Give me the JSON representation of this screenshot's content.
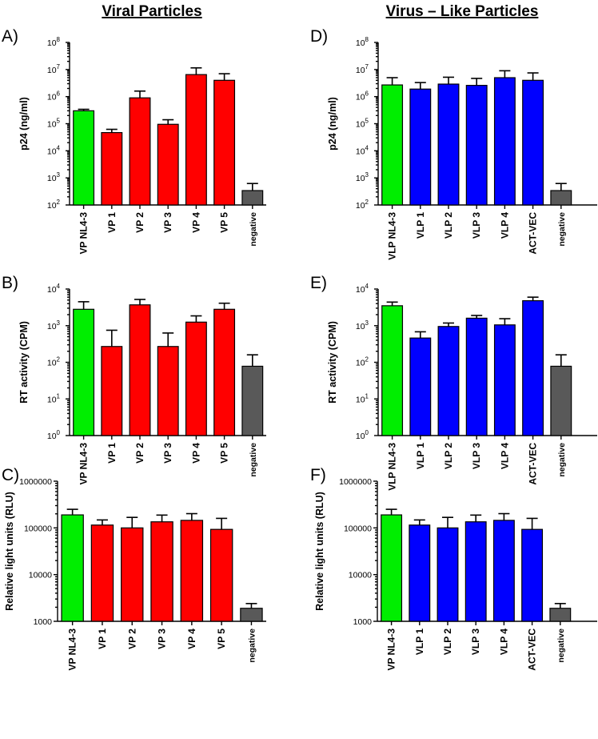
{
  "colors": {
    "green": "#00ee00",
    "red": "#ff0000",
    "blue": "#0000ff",
    "gray": "#595959"
  },
  "titles": {
    "left": "Viral Particles",
    "right": "Virus – Like Particles"
  },
  "chart_data": [
    {
      "panel": "A)",
      "type": "bar",
      "scale": "log",
      "ylabel": "p24 (ng/ml)",
      "ylim": [
        100,
        100000000
      ],
      "ytick_labels": [
        {
          "base": "10",
          "exp": "2"
        },
        {
          "base": "10",
          "exp": "3"
        },
        {
          "base": "10",
          "exp": "4"
        },
        {
          "base": "10",
          "exp": "5"
        },
        {
          "base": "10",
          "exp": "6"
        },
        {
          "base": "10",
          "exp": "7"
        },
        {
          "base": "10",
          "exp": "8"
        }
      ],
      "categories": [
        "VP NL4-3",
        "VP 1",
        "VP 2",
        "VP 3",
        "VP 4",
        "VP 5",
        "negative"
      ],
      "values": [
        300000,
        47000,
        900000,
        95000,
        6500000,
        4000000,
        340
      ],
      "errors": [
        340000,
        62000,
        1600000,
        140000,
        11500000,
        7000000,
        620
      ],
      "bar_colors": [
        "green",
        "red",
        "red",
        "red",
        "red",
        "red",
        "gray"
      ]
    },
    {
      "panel": "B)",
      "type": "bar",
      "scale": "log",
      "ylabel": "RT activity (CPM)",
      "ylim": [
        1,
        10000
      ],
      "ytick_labels": [
        {
          "base": "10",
          "exp": "0"
        },
        {
          "base": "10",
          "exp": "1"
        },
        {
          "base": "10",
          "exp": "2"
        },
        {
          "base": "10",
          "exp": "3"
        },
        {
          "base": "10",
          "exp": "4"
        }
      ],
      "categories": [
        "VP NL4-3",
        "VP 1",
        "VP 2",
        "VP 3",
        "VP 4",
        "VP 5",
        "negative"
      ],
      "values": [
        2800,
        270,
        3700,
        270,
        1250,
        2800,
        78
      ],
      "errors": [
        4500,
        750,
        5200,
        630,
        1850,
        4100,
        160
      ],
      "bar_colors": [
        "green",
        "red",
        "red",
        "red",
        "red",
        "red",
        "gray"
      ]
    },
    {
      "panel": "C)",
      "type": "bar",
      "scale": "log",
      "ylabel": "Relative light units (RLU)",
      "ylim": [
        1000,
        1000000
      ],
      "ytick_labels": [
        {
          "base": "1000"
        },
        {
          "base": "10000"
        },
        {
          "base": "100000"
        },
        {
          "base": "1000000"
        }
      ],
      "categories": [
        "VP NL4-3",
        "VP 1",
        "VP 2",
        "VP 3",
        "VP 4",
        "VP 5",
        "negative"
      ],
      "values": [
        190000,
        115000,
        100000,
        135000,
        145000,
        93000,
        1900
      ],
      "errors": [
        250000,
        148000,
        168000,
        188000,
        202000,
        160000,
        2400
      ],
      "bar_colors": [
        "green",
        "red",
        "red",
        "red",
        "red",
        "red",
        "gray"
      ]
    },
    {
      "panel": "D)",
      "type": "bar",
      "scale": "log",
      "ylabel": "p24 (ng/ml)",
      "ylim": [
        100,
        100000000
      ],
      "ytick_labels": [
        {
          "base": "10",
          "exp": "2"
        },
        {
          "base": "10",
          "exp": "3"
        },
        {
          "base": "10",
          "exp": "4"
        },
        {
          "base": "10",
          "exp": "5"
        },
        {
          "base": "10",
          "exp": "6"
        },
        {
          "base": "10",
          "exp": "7"
        },
        {
          "base": "10",
          "exp": "8"
        }
      ],
      "categories": [
        "VLP NL4-3",
        "VLP 1",
        "VLP 2",
        "VLP 3",
        "VLP 4",
        "ACT-VEC",
        "negative"
      ],
      "values": [
        2700000,
        1900000,
        2900000,
        2600000,
        5000000,
        4000000,
        340
      ],
      "errors": [
        5000000,
        3300000,
        5200000,
        4700000,
        9000000,
        7500000,
        620
      ],
      "bar_colors": [
        "green",
        "blue",
        "blue",
        "blue",
        "blue",
        "blue",
        "gray"
      ]
    },
    {
      "panel": "E)",
      "type": "bar",
      "scale": "log",
      "ylabel": "RT activity (CPM)",
      "ylim": [
        1,
        10000
      ],
      "ytick_labels": [
        {
          "base": "10",
          "exp": "0"
        },
        {
          "base": "10",
          "exp": "1"
        },
        {
          "base": "10",
          "exp": "2"
        },
        {
          "base": "10",
          "exp": "3"
        },
        {
          "base": "10",
          "exp": "4"
        }
      ],
      "categories": [
        "VLP NL4-3",
        "VLP 1",
        "VLP 2",
        "VLP 3",
        "VLP 4",
        "ACT-VEC",
        "negative"
      ],
      "values": [
        3500,
        460,
        950,
        1600,
        1050,
        4800,
        78
      ],
      "errors": [
        4400,
        680,
        1180,
        1900,
        1550,
        6000,
        160
      ],
      "bar_colors": [
        "green",
        "blue",
        "blue",
        "blue",
        "blue",
        "blue",
        "gray"
      ]
    },
    {
      "panel": "F)",
      "type": "bar",
      "scale": "log",
      "ylabel": "Relative light units (RLU)",
      "ylim": [
        1000,
        1000000
      ],
      "ytick_labels": [
        {
          "base": "1000"
        },
        {
          "base": "10000"
        },
        {
          "base": "100000"
        },
        {
          "base": "1000000"
        }
      ],
      "categories": [
        "VP NL4-3",
        "VLP 1",
        "VLP 2",
        "VLP 3",
        "VLP 4",
        "ACT-VEC",
        "negative"
      ],
      "values": [
        190000,
        115000,
        100000,
        135000,
        145000,
        93000,
        1900
      ],
      "errors": [
        250000,
        148000,
        168000,
        188000,
        202000,
        160000,
        2400
      ],
      "bar_colors": [
        "green",
        "blue",
        "blue",
        "blue",
        "blue",
        "blue",
        "gray"
      ]
    }
  ]
}
